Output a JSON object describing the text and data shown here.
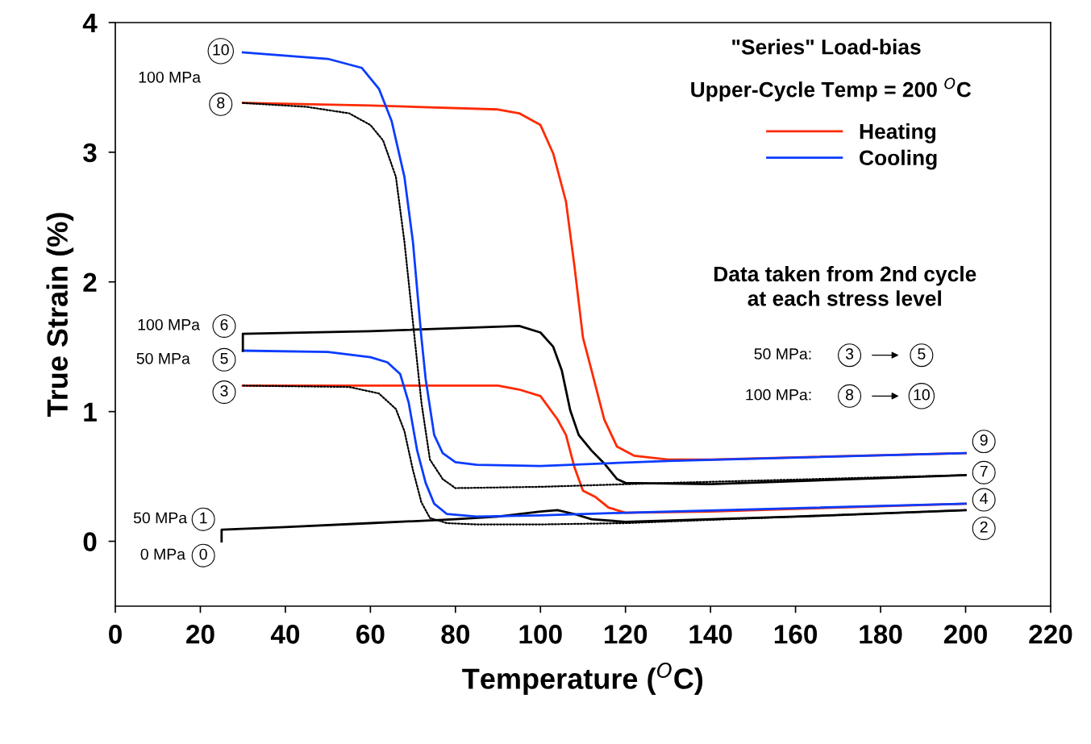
{
  "chart_data": {
    "type": "line",
    "title": "\"Series\" Load-bias",
    "subtitle": "Upper-Cycle Temp = 200 $^{O}$C",
    "xlabel": "Temperature ($^{O}$C)",
    "ylabel": "True Strain (%)",
    "xlim": [
      0,
      220
    ],
    "xticks": [
      0,
      20,
      40,
      60,
      80,
      100,
      120,
      140,
      160,
      180,
      200,
      220
    ],
    "ylim": [
      -0.5,
      4
    ],
    "yticks": [
      0,
      1,
      2,
      3,
      4
    ],
    "grid": false,
    "legend": "top right",
    "marker": "none",
    "series": [
      {
        "color": "#000000",
        "line_style": "solid",
        "x": [
          25,
          25,
          40,
          60,
          80,
          90,
          100,
          104,
          108,
          112,
          120,
          160,
          200
        ],
        "values": [
          0.0,
          0.09,
          0.11,
          0.14,
          0.17,
          0.19,
          0.23,
          0.24,
          0.21,
          0.17,
          0.15,
          0.19,
          0.24
        ]
      },
      {
        "color": "#000000",
        "line_style": "dotted",
        "x": [
          200,
          160,
          120,
          100,
          85,
          78,
          74,
          72,
          70,
          68,
          66,
          62,
          55,
          30
        ],
        "values": [
          0.24,
          0.19,
          0.14,
          0.13,
          0.13,
          0.14,
          0.18,
          0.3,
          0.55,
          0.85,
          1.02,
          1.14,
          1.19,
          1.2
        ]
      },
      {
        "name": "Heating",
        "color": "#ff2a00",
        "line_style": "solid",
        "x": [
          30,
          60,
          90,
          95,
          100,
          104,
          106,
          108,
          110,
          113,
          116,
          120,
          140,
          200
        ],
        "values": [
          1.2,
          1.2,
          1.2,
          1.17,
          1.12,
          0.94,
          0.82,
          0.57,
          0.39,
          0.34,
          0.26,
          0.22,
          0.23,
          0.29
        ]
      },
      {
        "name": "Cooling",
        "color": "#0a3cff",
        "line_style": "solid",
        "x": [
          200,
          120,
          100,
          85,
          78,
          75,
          73,
          71,
          69,
          67,
          64,
          60,
          50,
          30
        ],
        "values": [
          0.29,
          0.22,
          0.2,
          0.19,
          0.21,
          0.29,
          0.45,
          0.7,
          1.07,
          1.29,
          1.38,
          1.42,
          1.46,
          1.47
        ]
      },
      {
        "color": "#000000",
        "line_style": "solid",
        "x": [
          30,
          30,
          60,
          95,
          100,
          103,
          105,
          107,
          109,
          112,
          115,
          118,
          120,
          140,
          200
        ],
        "values": [
          1.47,
          1.6,
          1.62,
          1.66,
          1.61,
          1.5,
          1.32,
          1.01,
          0.82,
          0.7,
          0.6,
          0.48,
          0.45,
          0.44,
          0.51
        ]
      },
      {
        "color": "#000000",
        "line_style": "dotted",
        "x": [
          200,
          130,
          100,
          80,
          77,
          74,
          72,
          70,
          68,
          66,
          63,
          60,
          55,
          45,
          30
        ],
        "values": [
          0.51,
          0.45,
          0.42,
          0.41,
          0.48,
          0.63,
          1.07,
          1.69,
          2.31,
          2.81,
          3.09,
          3.21,
          3.3,
          3.35,
          3.38
        ]
      },
      {
        "color": "#ff2a00",
        "line_style": "solid",
        "x": [
          30,
          60,
          90,
          95,
          100,
          103,
          106,
          108,
          110,
          112,
          115,
          118,
          122,
          130,
          140,
          200
        ],
        "values": [
          3.38,
          3.36,
          3.33,
          3.3,
          3.21,
          2.99,
          2.62,
          2.12,
          1.57,
          1.32,
          0.94,
          0.73,
          0.66,
          0.63,
          0.63,
          0.68
        ]
      },
      {
        "color": "#0a3cff",
        "line_style": "solid",
        "x": [
          200,
          130,
          100,
          85,
          80,
          77,
          75,
          73,
          72,
          70,
          68,
          65,
          62,
          58,
          50,
          30
        ],
        "values": [
          0.68,
          0.62,
          0.58,
          0.59,
          0.61,
          0.68,
          0.82,
          1.25,
          1.57,
          2.31,
          2.81,
          3.24,
          3.49,
          3.65,
          3.72,
          3.77
        ]
      }
    ],
    "annotations": [
      {
        "text": "10",
        "x": 24.8,
        "y": 3.78
      },
      {
        "text": "8",
        "x": 24.8,
        "y": 3.37
      },
      {
        "text": "6",
        "x": 25.6,
        "y": 1.66
      },
      {
        "text": "5",
        "x": 25.6,
        "y": 1.4
      },
      {
        "text": "3",
        "x": 25.6,
        "y": 1.15
      },
      {
        "text": "1",
        "x": 20.7,
        "y": 0.17
      },
      {
        "text": "0",
        "x": 20.7,
        "y": -0.11
      },
      {
        "text": "9",
        "x": 204.3,
        "y": 0.77
      },
      {
        "text": "7",
        "x": 204.3,
        "y": 0.53
      },
      {
        "text": "4",
        "x": 204.3,
        "y": 0.32
      },
      {
        "text": "2",
        "x": 204.3,
        "y": 0.1
      },
      "100 MPa",
      "100 MPa",
      "50 MPa",
      "50 MPa",
      "0 MPa",
      "Data taken from 2nd cycle\nat each stress level",
      "50 MPa:",
      "3",
      "5",
      "100 MPa:",
      "8",
      "10"
    ]
  }
}
